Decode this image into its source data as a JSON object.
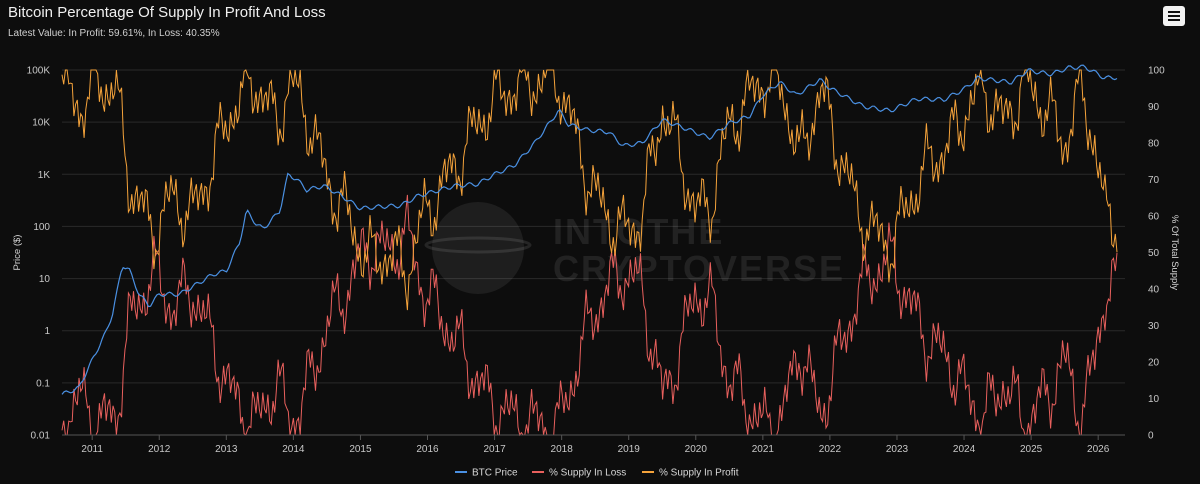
{
  "header": {
    "title": "Bitcoin Percentage Of Supply In Profit And Loss",
    "subtitle": "Latest Value: In Profit: 59.61%, In Loss: 40.35%",
    "menu_icon": "hamburger-menu-icon"
  },
  "watermark": [
    "INTOTHE",
    "CRYPTOVERSE"
  ],
  "colors": {
    "background": "#0d0d0d",
    "grid": "#2a2a2a",
    "btc_price": "#4a90e2",
    "supply_in_loss": "#e8605d",
    "supply_in_profit": "#f5a33b"
  },
  "chart_data": {
    "type": "line",
    "title": "Bitcoin Percentage Of Supply In Profit And Loss",
    "subtitle": "Latest Value: In Profit: 59.61%, In Loss: 40.35%",
    "xlabel": "",
    "ylabel_left": "Price ($)",
    "ylabel_right": "% Of Total Supply",
    "x_range": [
      2010.55,
      2026.4
    ],
    "y_left_scale": "log",
    "y_left_range": [
      0.01,
      100000
    ],
    "y_left_ticks": [
      "0.01",
      "0.1",
      "1",
      "10",
      "100",
      "1K",
      "10K",
      "100K"
    ],
    "y_right_range": [
      0,
      100
    ],
    "y_right_ticks": [
      "0",
      "10",
      "20",
      "30",
      "40",
      "50",
      "60",
      "70",
      "80",
      "90",
      "100"
    ],
    "x_ticks": [
      "2011",
      "2012",
      "2013",
      "2014",
      "2015",
      "2016",
      "2017",
      "2018",
      "2019",
      "2020",
      "2021",
      "2022",
      "2023",
      "2024",
      "2025",
      "2026"
    ],
    "grid": true,
    "legend": "bottom-center",
    "series": [
      {
        "name": "BTC Price",
        "axis": "left",
        "points": [
          [
            2010.55,
            0.06
          ],
          [
            2010.8,
            0.08
          ],
          [
            2010.95,
            0.2
          ],
          [
            2011.1,
            0.5
          ],
          [
            2011.2,
            0.9
          ],
          [
            2011.3,
            2
          ],
          [
            2011.45,
            18
          ],
          [
            2011.55,
            15
          ],
          [
            2011.7,
            5
          ],
          [
            2011.85,
            3
          ],
          [
            2012.0,
            5
          ],
          [
            2012.3,
            5
          ],
          [
            2012.5,
            7
          ],
          [
            2012.8,
            12
          ],
          [
            2013.0,
            14
          ],
          [
            2013.2,
            50
          ],
          [
            2013.3,
            200
          ],
          [
            2013.45,
            110
          ],
          [
            2013.55,
            90
          ],
          [
            2013.8,
            200
          ],
          [
            2013.92,
            1000
          ],
          [
            2014.05,
            800
          ],
          [
            2014.2,
            500
          ],
          [
            2014.45,
            600
          ],
          [
            2014.7,
            400
          ],
          [
            2015.0,
            220
          ],
          [
            2015.3,
            240
          ],
          [
            2015.6,
            250
          ],
          [
            2015.85,
            380
          ],
          [
            2016.0,
            430
          ],
          [
            2016.4,
            600
          ],
          [
            2016.75,
            650
          ],
          [
            2017.0,
            1000
          ],
          [
            2017.3,
            1500
          ],
          [
            2017.6,
            4000
          ],
          [
            2017.96,
            17000
          ],
          [
            2018.1,
            9000
          ],
          [
            2018.4,
            7000
          ],
          [
            2018.7,
            6500
          ],
          [
            2018.92,
            3500
          ],
          [
            2019.2,
            4000
          ],
          [
            2019.5,
            11000
          ],
          [
            2019.8,
            8000
          ],
          [
            2020.2,
            5000
          ],
          [
            2020.5,
            9500
          ],
          [
            2020.8,
            13000
          ],
          [
            2021.0,
            33000
          ],
          [
            2021.25,
            58000
          ],
          [
            2021.5,
            33000
          ],
          [
            2021.85,
            65000
          ],
          [
            2022.0,
            45000
          ],
          [
            2022.5,
            20000
          ],
          [
            2022.9,
            16500
          ],
          [
            2023.3,
            28000
          ],
          [
            2023.7,
            27000
          ],
          [
            2024.0,
            43000
          ],
          [
            2024.2,
            70000
          ],
          [
            2024.7,
            58000
          ],
          [
            2024.95,
            98000
          ],
          [
            2025.3,
            83000
          ],
          [
            2025.55,
            110000
          ],
          [
            2025.8,
            115000
          ],
          [
            2025.95,
            90000
          ],
          [
            2026.1,
            70000
          ],
          [
            2026.28,
            72000
          ]
        ]
      },
      {
        "name": "% Supply In Loss",
        "axis": "right",
        "points": [
          [
            2010.55,
            5
          ],
          [
            2010.85,
            10
          ],
          [
            2011.05,
            3
          ],
          [
            2011.35,
            5
          ],
          [
            2011.55,
            30
          ],
          [
            2011.9,
            45
          ],
          [
            2012.2,
            35
          ],
          [
            2012.5,
            40
          ],
          [
            2012.8,
            25
          ],
          [
            2013.1,
            10
          ],
          [
            2013.45,
            3
          ],
          [
            2013.75,
            15
          ],
          [
            2013.95,
            3
          ],
          [
            2014.2,
            12
          ],
          [
            2014.5,
            30
          ],
          [
            2014.8,
            40
          ],
          [
            2015.1,
            52
          ],
          [
            2015.4,
            50
          ],
          [
            2015.7,
            55
          ],
          [
            2015.95,
            40
          ],
          [
            2016.3,
            30
          ],
          [
            2016.6,
            20
          ],
          [
            2016.9,
            10
          ],
          [
            2017.2,
            5
          ],
          [
            2017.6,
            3
          ],
          [
            2017.95,
            2
          ],
          [
            2018.2,
            18
          ],
          [
            2018.5,
            35
          ],
          [
            2018.9,
            45
          ],
          [
            2019.2,
            40
          ],
          [
            2019.5,
            10
          ],
          [
            2019.8,
            25
          ],
          [
            2020.0,
            40
          ],
          [
            2020.25,
            35
          ],
          [
            2020.5,
            15
          ],
          [
            2020.8,
            8
          ],
          [
            2021.0,
            2
          ],
          [
            2021.3,
            5
          ],
          [
            2021.55,
            25
          ],
          [
            2021.85,
            5
          ],
          [
            2022.1,
            20
          ],
          [
            2022.4,
            38
          ],
          [
            2022.65,
            45
          ],
          [
            2022.95,
            48
          ],
          [
            2023.2,
            35
          ],
          [
            2023.5,
            25
          ],
          [
            2023.8,
            20
          ],
          [
            2024.0,
            12
          ],
          [
            2024.3,
            5
          ],
          [
            2024.6,
            15
          ],
          [
            2024.9,
            3
          ],
          [
            2025.2,
            10
          ],
          [
            2025.5,
            20
          ],
          [
            2025.75,
            5
          ],
          [
            2025.95,
            20
          ],
          [
            2026.1,
            40
          ],
          [
            2026.28,
            40.35
          ]
        ]
      },
      {
        "name": "% Supply In Profit",
        "axis": "right",
        "points": [
          [
            2010.55,
            95
          ],
          [
            2010.85,
            90
          ],
          [
            2011.05,
            97
          ],
          [
            2011.35,
            95
          ],
          [
            2011.55,
            70
          ],
          [
            2011.9,
            55
          ],
          [
            2012.2,
            65
          ],
          [
            2012.5,
            60
          ],
          [
            2012.8,
            75
          ],
          [
            2013.1,
            90
          ],
          [
            2013.45,
            97
          ],
          [
            2013.75,
            85
          ],
          [
            2013.95,
            97
          ],
          [
            2014.2,
            88
          ],
          [
            2014.5,
            70
          ],
          [
            2014.8,
            60
          ],
          [
            2015.1,
            48
          ],
          [
            2015.4,
            50
          ],
          [
            2015.7,
            45
          ],
          [
            2015.95,
            60
          ],
          [
            2016.3,
            70
          ],
          [
            2016.6,
            80
          ],
          [
            2016.9,
            90
          ],
          [
            2017.2,
            95
          ],
          [
            2017.6,
            97
          ],
          [
            2017.95,
            98
          ],
          [
            2018.2,
            82
          ],
          [
            2018.5,
            65
          ],
          [
            2018.9,
            55
          ],
          [
            2019.2,
            60
          ],
          [
            2019.5,
            90
          ],
          [
            2019.8,
            75
          ],
          [
            2020.0,
            60
          ],
          [
            2020.25,
            65
          ],
          [
            2020.5,
            85
          ],
          [
            2020.8,
            92
          ],
          [
            2021.0,
            98
          ],
          [
            2021.3,
            95
          ],
          [
            2021.55,
            75
          ],
          [
            2021.85,
            95
          ],
          [
            2022.1,
            80
          ],
          [
            2022.4,
            62
          ],
          [
            2022.65,
            55
          ],
          [
            2022.95,
            52
          ],
          [
            2023.2,
            65
          ],
          [
            2023.5,
            75
          ],
          [
            2023.8,
            80
          ],
          [
            2024.0,
            88
          ],
          [
            2024.3,
            95
          ],
          [
            2024.6,
            85
          ],
          [
            2024.9,
            97
          ],
          [
            2025.2,
            90
          ],
          [
            2025.5,
            80
          ],
          [
            2025.75,
            95
          ],
          [
            2025.95,
            80
          ],
          [
            2026.1,
            60
          ],
          [
            2026.28,
            59.61
          ]
        ]
      }
    ]
  }
}
